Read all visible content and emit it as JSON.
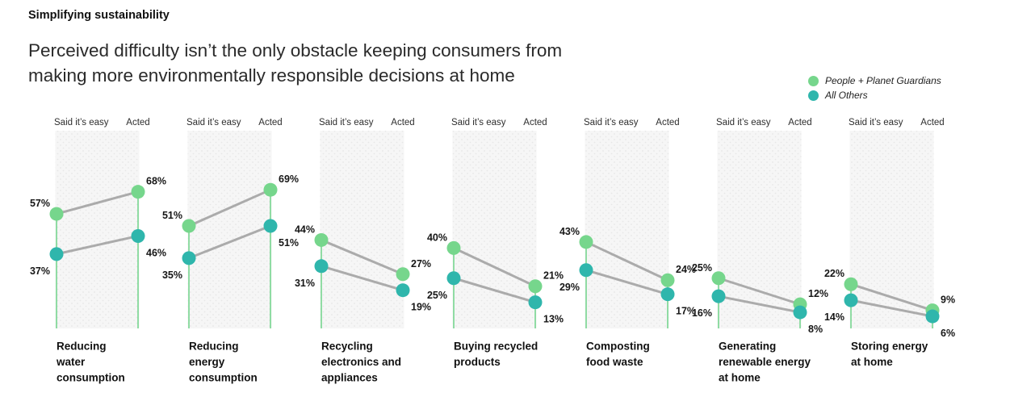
{
  "page": {
    "eyebrow": "Simplifying sustainability",
    "headline_line1": "Perceived difficulty isn’t the only obstacle keeping consumers from",
    "headline_line2": "making more environmentally responsible decisions at home"
  },
  "chart_data": {
    "type": "slope",
    "unit": "%",
    "title": "Simplifying sustainability",
    "subtitle": "Perceived difficulty isn’t the only obstacle keeping consumers from making more environmentally responsible decisions at home",
    "categories": [
      "Said it’s easy",
      "Acted"
    ],
    "ylim": [
      0,
      100
    ],
    "legend_position": "top-right",
    "series": [
      {
        "key": "guardians",
        "name": "People + Planet Guardians",
        "color": "#76d68c"
      },
      {
        "key": "others",
        "name": "All Others",
        "color": "#2fb6ac"
      }
    ],
    "colors": {
      "slope_line": "#ababab",
      "axis_line": "#7fd795",
      "panel_background": "#f6f6f6",
      "panel_dot_texture": "#e7e7e7",
      "label_text": "#161616"
    },
    "panels": [
      {
        "label": "Reducing water consumption",
        "label_lines": [
          "Reducing",
          "water",
          "consumption"
        ],
        "guardians": [
          57,
          68
        ],
        "others": [
          37,
          46
        ],
        "right_axis_line": true
      },
      {
        "label": "Reducing energy consumption",
        "label_lines": [
          "Reducing",
          "energy",
          "consumption"
        ],
        "guardians": [
          51,
          69
        ],
        "others": [
          35,
          51
        ],
        "right_axis_line": true
      },
      {
        "label": "Recycling electronics and appliances",
        "label_lines": [
          "Recycling",
          "electronics and",
          "appliances"
        ],
        "guardians": [
          44,
          27
        ],
        "others": [
          31,
          19
        ],
        "right_axis_line": false
      },
      {
        "label": "Buying recycled products",
        "label_lines": [
          "Buying recycled",
          "products"
        ],
        "guardians": [
          40,
          21
        ],
        "others": [
          25,
          13
        ],
        "right_axis_line": true
      },
      {
        "label": "Composting food waste",
        "label_lines": [
          "Composting",
          "food waste"
        ],
        "guardians": [
          43,
          24
        ],
        "others": [
          29,
          17
        ],
        "right_axis_line": true
      },
      {
        "label": "Generating renewable energy at home",
        "label_lines": [
          "Generating",
          "renewable energy",
          "at home"
        ],
        "guardians": [
          25,
          12
        ],
        "others": [
          16,
          8
        ],
        "right_axis_line": true
      },
      {
        "label": "Storing energy at home",
        "label_lines": [
          "Storing energy",
          "at home"
        ],
        "guardians": [
          22,
          9
        ],
        "others": [
          14,
          6
        ],
        "right_axis_line": true
      }
    ]
  }
}
